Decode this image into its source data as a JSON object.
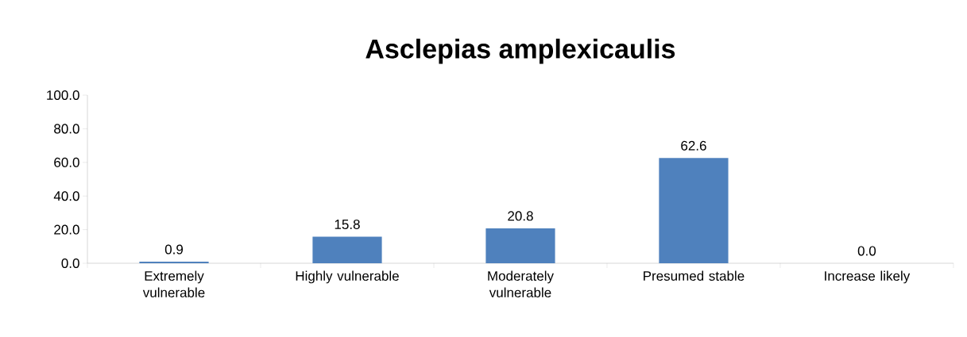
{
  "chart_data": {
    "type": "bar",
    "title": "Asclepias amplexicaulis",
    "categories": [
      "Extremely vulnerable",
      "Highly vulnerable",
      "Moderately vulnerable",
      "Presumed stable",
      "Increase likely"
    ],
    "values": [
      0.9,
      15.8,
      20.8,
      62.6,
      0.0
    ],
    "value_labels": [
      "0.9",
      "15.8",
      "20.8",
      "62.6",
      "0.0"
    ],
    "color": "#4f81bd",
    "ylim": [
      0,
      100
    ],
    "yticks": [
      {
        "value": 0,
        "label": "0.0"
      },
      {
        "value": 20,
        "label": "20.0"
      },
      {
        "value": 40,
        "label": "40.0"
      },
      {
        "value": 60,
        "label": "60.0"
      },
      {
        "value": 80,
        "label": "80.0"
      },
      {
        "value": 100,
        "label": "100.0"
      }
    ],
    "grid": false
  }
}
